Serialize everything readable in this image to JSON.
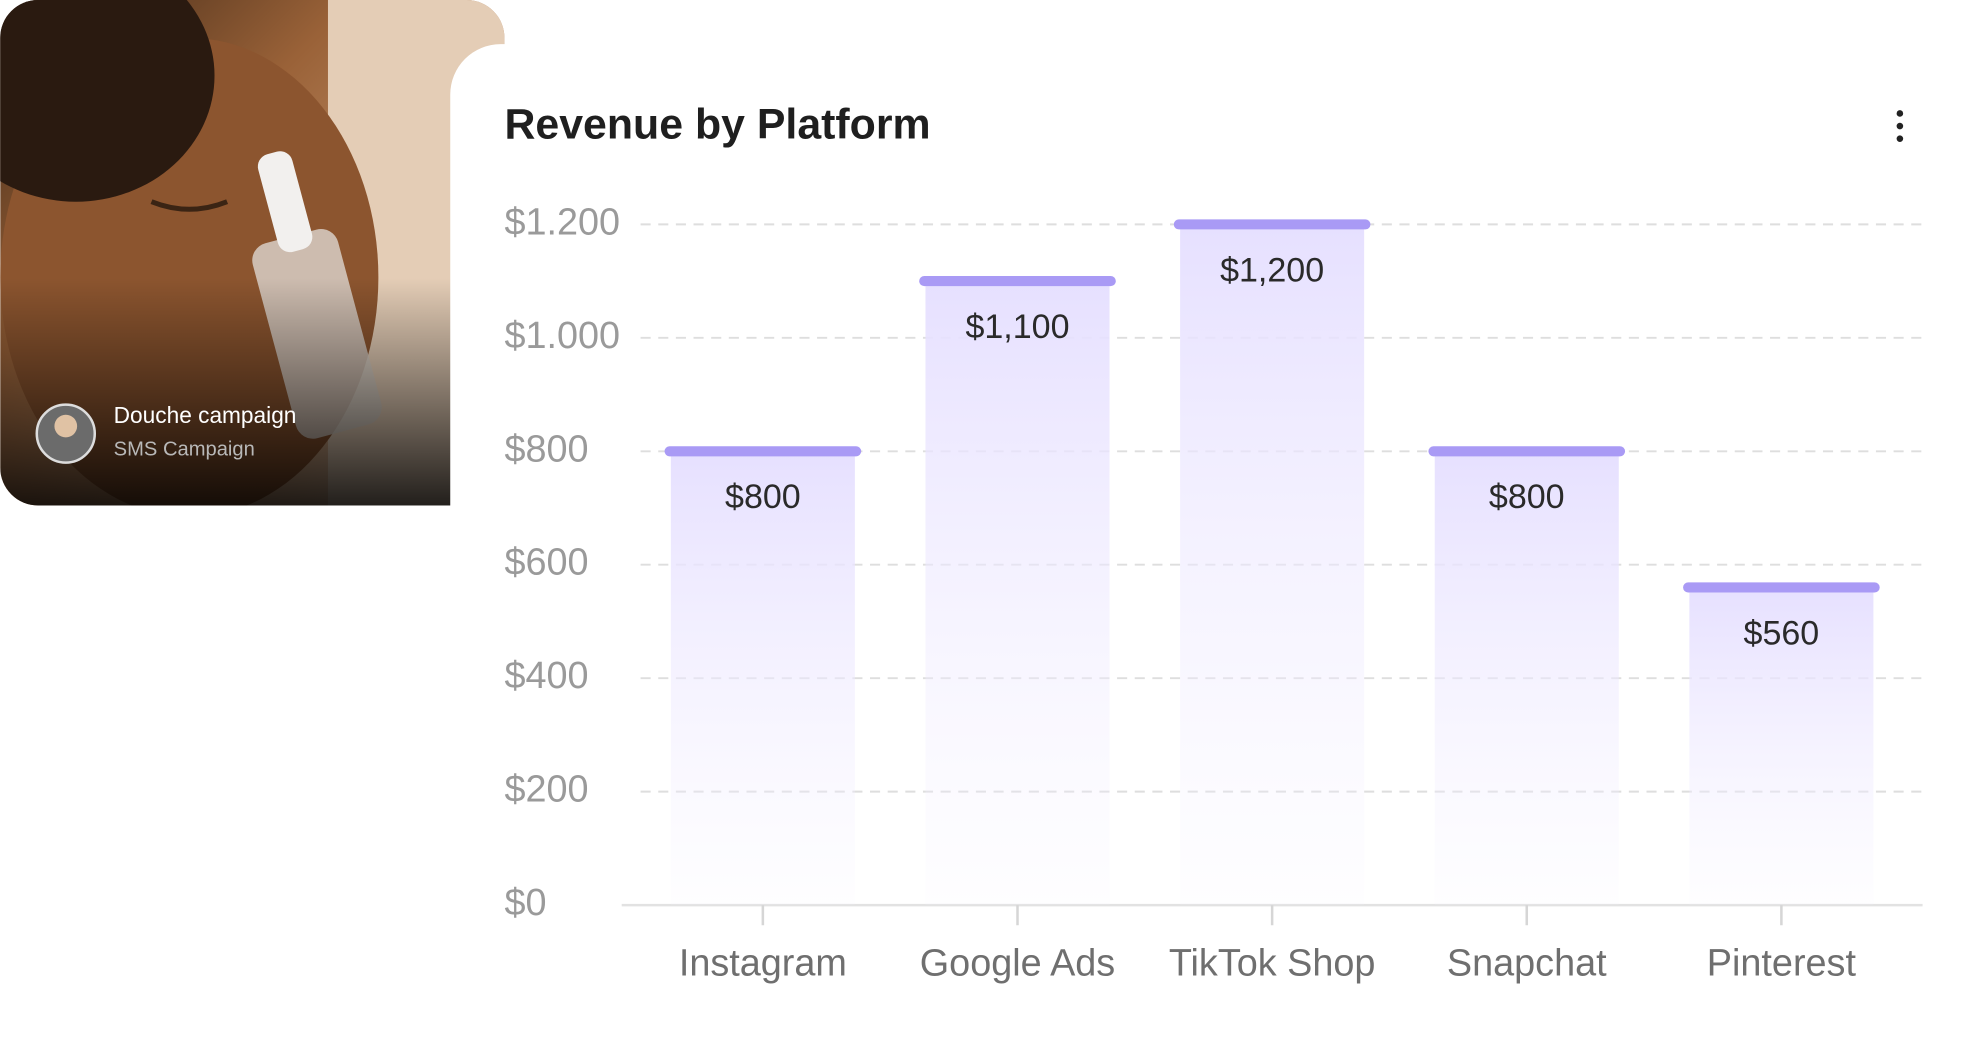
{
  "campaign_card": {
    "title": "Douche campaign",
    "subtitle": "SMS Campaign"
  },
  "chart_data": {
    "type": "bar",
    "title": "Revenue by Platform",
    "categories": [
      "Instagram",
      "Google Ads",
      "TikTok Shop",
      "Snapchat",
      "Pinterest"
    ],
    "values": [
      800,
      1100,
      1200,
      800,
      560
    ],
    "value_labels": [
      "$800",
      "$1,100",
      "$1,200",
      "$800",
      "$560"
    ],
    "color": "#a99af5",
    "ylim": [
      0,
      1200
    ],
    "yticks": [
      {
        "value": 0,
        "label": "$0"
      },
      {
        "value": 200,
        "label": "$200"
      },
      {
        "value": 400,
        "label": "$400"
      },
      {
        "value": 600,
        "label": "$600"
      },
      {
        "value": 800,
        "label": "$800"
      },
      {
        "value": 1000,
        "label": "$1.000"
      },
      {
        "value": 1200,
        "label": "$1.200"
      }
    ],
    "grid": true
  }
}
